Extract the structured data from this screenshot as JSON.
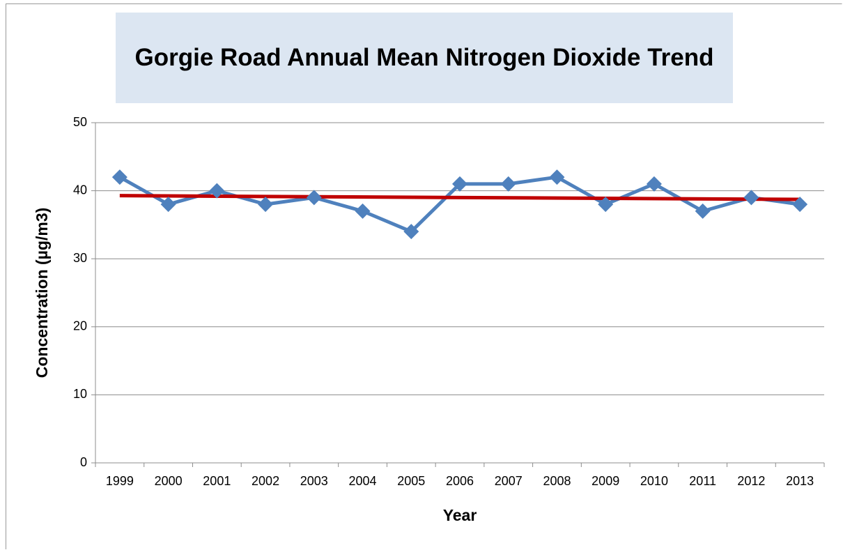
{
  "chart_data": {
    "type": "line",
    "title": "Gorgie Road Annual Mean Nitrogen Dioxide Trend",
    "x_label": "Year",
    "y_label": "Concentration (µg/m3)",
    "categories": [
      "1999",
      "2000",
      "2001",
      "2002",
      "2003",
      "2004",
      "2005",
      "2006",
      "2007",
      "2008",
      "2009",
      "2010",
      "2011",
      "2012",
      "2013"
    ],
    "values": [
      42,
      38,
      40,
      38,
      39,
      37,
      34,
      41,
      41,
      42,
      38,
      41,
      37,
      39,
      38
    ],
    "color": "#4f81bd",
    "marker": "diamond",
    "trendline": {
      "type": "linear",
      "color": "#c00000"
    },
    "ylim": [
      0,
      50
    ],
    "yticks": [
      0,
      10,
      20,
      30,
      40,
      50
    ],
    "grid": true
  }
}
